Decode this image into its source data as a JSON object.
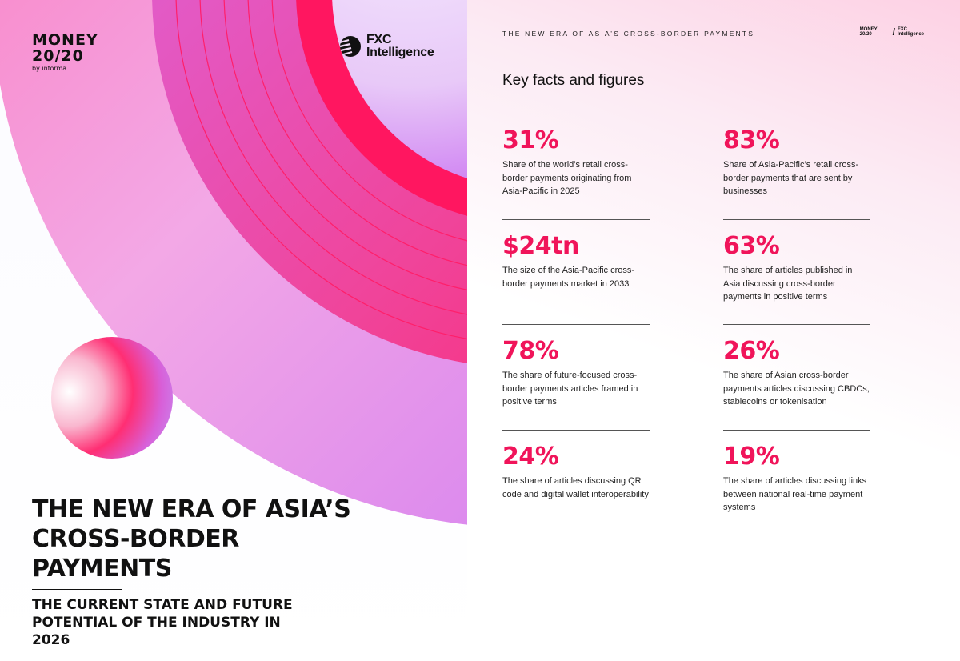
{
  "cover": {
    "money_logo_line1": "MONEY",
    "money_logo_line2": "20/20",
    "money_logo_byline": "by informa",
    "fxc_logo_line1": "FXC",
    "fxc_logo_line2": "Intelligence",
    "title": "THE NEW ERA OF ASIA’S CROSS-BORDER PAYMENTS",
    "subtitle": "THE CURRENT STATE AND FUTURE POTENTIAL OF THE INDUSTRY IN 2026"
  },
  "page": {
    "header": "THE NEW ERA OF ASIA’S CROSS-BORDER PAYMENTS",
    "header_logo_money": "MONEY 20/20",
    "header_logo_fxc": "FXC Intelligence",
    "section_title": "Key facts and figures",
    "accent_color": "#f0145a",
    "facts": [
      {
        "value": "31%",
        "description": "Share of the world’s retail cross-border payments originating from Asia-Pacific in 2025"
      },
      {
        "value": "83%",
        "description": "Share of Asia-Pacific’s retail cross-border payments that are sent by businesses"
      },
      {
        "value": "$24tn",
        "description": "The size of the Asia-Pacific cross-border payments market in 2033"
      },
      {
        "value": "63%",
        "description": "The share of articles published in Asia discussing cross-border payments in positive terms"
      },
      {
        "value": "78%",
        "description": "The share of future-focused cross-border payments articles framed in positive terms"
      },
      {
        "value": "26%",
        "description": "The share of Asian cross-border payments articles discussing CBDCs, stablecoins or tokenisation"
      },
      {
        "value": "24%",
        "description": "The share of articles discussing QR code and digital wallet interoperability"
      },
      {
        "value": "19%",
        "description": "The share of articles discussing links between national real-time payment systems"
      }
    ]
  }
}
